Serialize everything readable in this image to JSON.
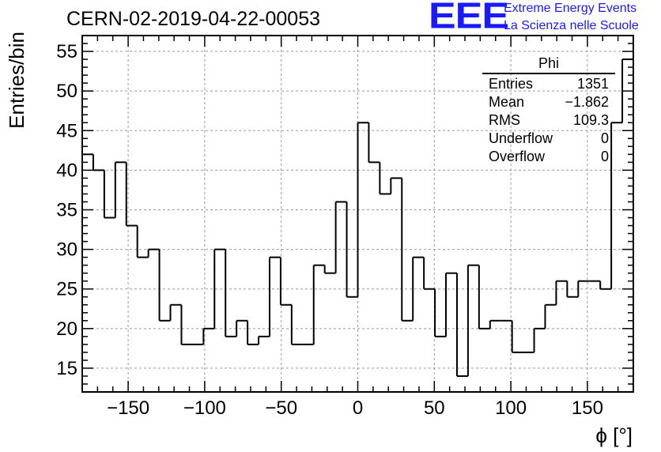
{
  "header": {
    "run_title": "CERN-02-2019-04-22-00053",
    "logo_text": "EEE",
    "org_line1": "Extreme Energy Events",
    "org_line2": "La Scienza nelle Scuole"
  },
  "stats_box": {
    "name": "Phi",
    "rows": [
      {
        "label": "Entries",
        "value": "1351"
      },
      {
        "label": "Mean",
        "value": "−1.862"
      },
      {
        "label": "RMS",
        "value": "109.3"
      },
      {
        "label": "Underflow",
        "value": "0"
      },
      {
        "label": "Overflow",
        "value": "0"
      }
    ]
  },
  "colors": {
    "logo": "#1a1aff",
    "grid": "#9a9a9a",
    "line": "#000000"
  },
  "chart_data": {
    "type": "histogram",
    "title": "CERN-02-2019-04-22-00053",
    "xlabel": "ϕ [°]",
    "ylabel": "Entries/bin",
    "xlim": [
      -180,
      180
    ],
    "ylim": [
      12,
      57
    ],
    "bin_width": 7.2,
    "x_ticks": [
      -150,
      -100,
      -50,
      0,
      50,
      100,
      150
    ],
    "x_tick_labels": [
      "−150",
      "−100",
      "−50",
      "0",
      "50",
      "100",
      "150"
    ],
    "y_ticks": [
      15,
      20,
      25,
      30,
      35,
      40,
      45,
      50,
      55
    ],
    "y_tick_labels": [
      "15",
      "20",
      "25",
      "30",
      "35",
      "40",
      "45",
      "50",
      "55"
    ],
    "grid": true,
    "values": [
      42,
      40,
      34,
      41,
      33,
      29,
      30,
      21,
      23,
      18,
      18,
      20,
      30,
      19,
      21,
      18,
      19,
      29,
      23,
      18,
      18,
      28,
      27,
      36,
      24,
      46,
      41,
      37,
      39,
      21,
      29,
      25,
      19,
      27,
      14,
      28,
      20,
      21,
      21,
      17,
      17,
      20,
      23,
      26,
      24,
      26,
      26,
      25,
      46,
      54
    ]
  }
}
